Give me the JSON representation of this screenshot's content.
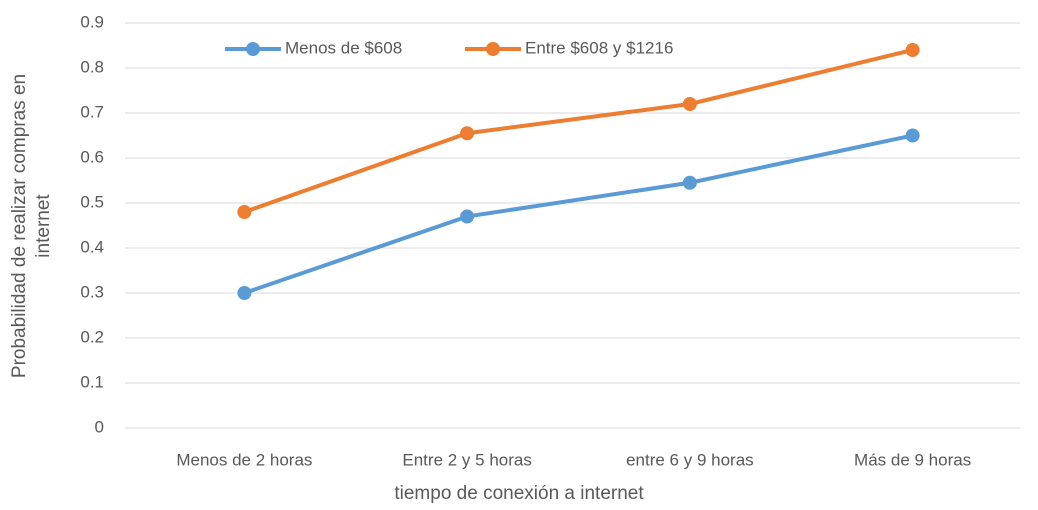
{
  "chart_data": {
    "type": "line",
    "x_label": "tiempo de conexión a internet",
    "y_label": [
      "Probabilidad de realizar compras en",
      "internet"
    ],
    "categories": [
      "Menos de 2 horas",
      "Entre 2 y 5 horas",
      "entre 6 y 9 horas",
      "Más de 9 horas"
    ],
    "series": [
      {
        "name": "Menos de $608",
        "color": "#5b9bd5",
        "values": [
          0.3,
          0.47,
          0.545,
          0.65
        ]
      },
      {
        "name": "Entre $608 y $1216",
        "color": "#ed7d31",
        "values": [
          0.48,
          0.655,
          0.72,
          0.84
        ]
      }
    ],
    "ylim": [
      0,
      0.9
    ],
    "yticks": [
      0,
      0.1,
      0.2,
      0.3,
      0.4,
      0.5,
      0.6,
      0.7,
      0.8,
      0.9
    ],
    "grid": true,
    "legend": "top"
  }
}
